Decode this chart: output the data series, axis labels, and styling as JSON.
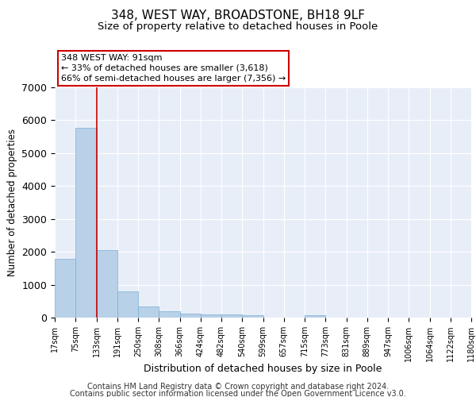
{
  "title": "348, WEST WAY, BROADSTONE, BH18 9LF",
  "subtitle": "Size of property relative to detached houses in Poole",
  "xlabel": "Distribution of detached houses by size in Poole",
  "ylabel": "Number of detached properties",
  "bar_color": "#b8d0e8",
  "bar_edge_color": "#7aaed4",
  "background_color": "#e8eef8",
  "grid_color": "#ffffff",
  "bin_labels": [
    "17sqm",
    "75sqm",
    "133sqm",
    "191sqm",
    "250sqm",
    "308sqm",
    "366sqm",
    "424sqm",
    "482sqm",
    "540sqm",
    "599sqm",
    "657sqm",
    "715sqm",
    "773sqm",
    "831sqm",
    "889sqm",
    "947sqm",
    "1006sqm",
    "1064sqm",
    "1122sqm",
    "1180sqm"
  ],
  "bar_heights": [
    1780,
    5780,
    2060,
    800,
    340,
    200,
    120,
    100,
    95,
    80,
    0,
    0,
    80,
    0,
    0,
    0,
    0,
    0,
    0,
    0
  ],
  "ylim": [
    0,
    7000
  ],
  "vline_x": 2,
  "vline_color": "#cc0000",
  "annotation_text": "348 WEST WAY: 91sqm\n← 33% of detached houses are smaller (3,618)\n66% of semi-detached houses are larger (7,356) →",
  "annotation_box_color": "#ffffff",
  "annotation_border_color": "#cc0000",
  "footer_line1": "Contains HM Land Registry data © Crown copyright and database right 2024.",
  "footer_line2": "Contains public sector information licensed under the Open Government Licence v3.0.",
  "title_fontsize": 11,
  "subtitle_fontsize": 9.5,
  "annotation_fontsize": 8,
  "footer_fontsize": 7,
  "ylabel_fontsize": 8.5,
  "xlabel_fontsize": 9,
  "tick_fontsize": 7
}
